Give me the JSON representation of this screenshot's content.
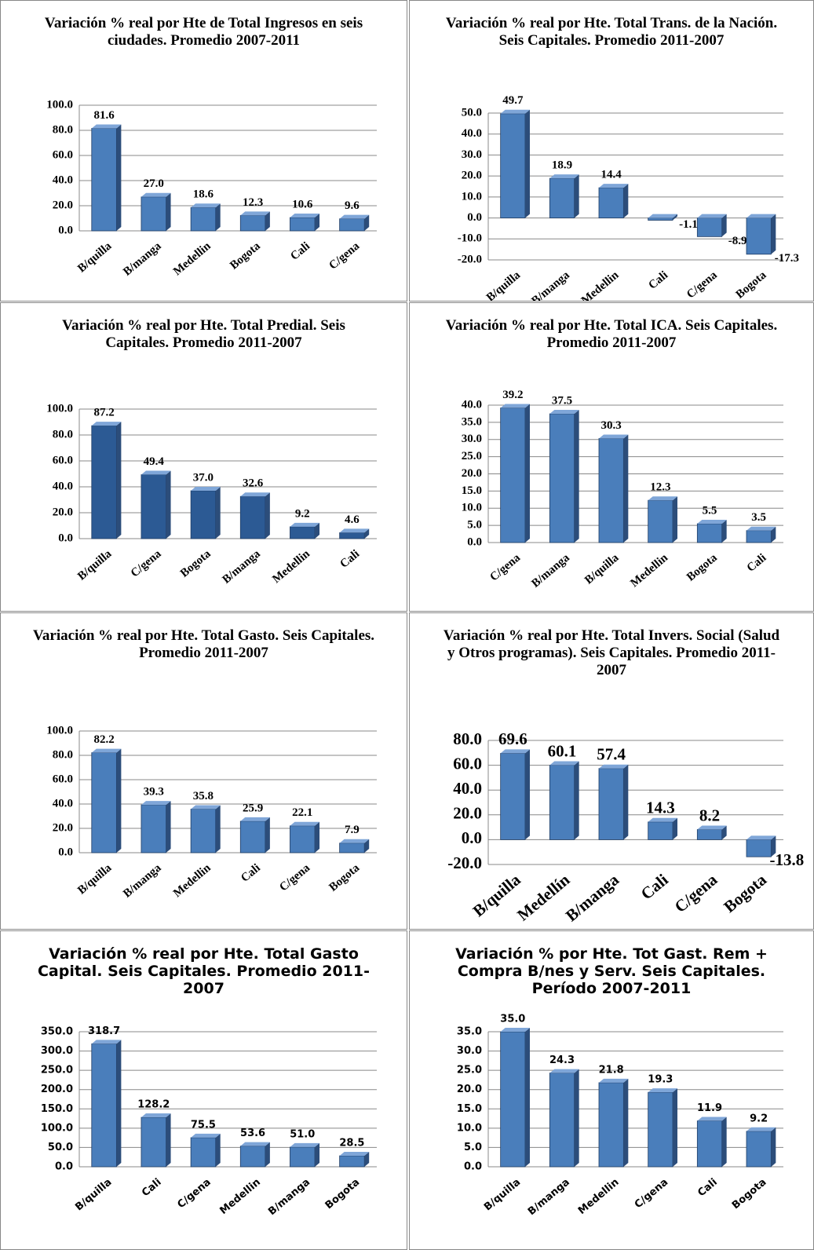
{
  "chart_data": [
    {
      "type": "bar",
      "title": "Variación % real por Hte de Total Ingresos en seis ciudades. Promedio 2007-2011",
      "categories": [
        "B/quilla",
        "B/manga",
        "Medellin",
        "Bogota",
        "Cali",
        "C/gena"
      ],
      "values": [
        81.6,
        27.0,
        18.6,
        12.3,
        10.6,
        9.6
      ],
      "value_labels": [
        "81.6",
        "27.0",
        "18.6",
        "12.3",
        "10.6",
        "9.6"
      ],
      "color": "#4a7ebb",
      "ylim": [
        0,
        100
      ],
      "yticks": [
        {
          "value": 0,
          "label": "0.0"
        },
        {
          "value": 20,
          "label": "20.0"
        },
        {
          "value": 40,
          "label": "40.0"
        },
        {
          "value": 60,
          "label": "60.0"
        },
        {
          "value": 80,
          "label": "80.0"
        },
        {
          "value": 100,
          "label": "100.0"
        }
      ],
      "grid": true
    },
    {
      "type": "bar",
      "title": "Variación %  real por Hte. Total Trans. de la Nación. Seis Capitales. Promedio 2011-2007",
      "categories": [
        "B/quilla",
        "B/manga",
        "Medellin",
        "Cali",
        "C/gena",
        "Bogota"
      ],
      "values": [
        49.7,
        18.9,
        14.4,
        -1.1,
        -8.9,
        -17.3
      ],
      "value_labels": [
        "49.7",
        "18.9",
        "14.4",
        "-1.1",
        "-8.9",
        "-17.3"
      ],
      "color": "#4a7ebb",
      "ylim": [
        -20,
        50
      ],
      "yticks": [
        {
          "value": -20,
          "label": "-20.0"
        },
        {
          "value": -10,
          "label": "-10.0"
        },
        {
          "value": 0,
          "label": "0.0"
        },
        {
          "value": 10,
          "label": "10.0"
        },
        {
          "value": 20,
          "label": "20.0"
        },
        {
          "value": 30,
          "label": "30.0"
        },
        {
          "value": 40,
          "label": "40.0"
        },
        {
          "value": 50,
          "label": "50.0"
        }
      ],
      "grid": true
    },
    {
      "type": "bar",
      "title": "Variación %  real por Hte. Total Predial. Seis Capitales. Promedio 2011-2007",
      "categories": [
        "B/quilla",
        "C/gena",
        "Bogota",
        "B/manga",
        "Medellin",
        "Cali"
      ],
      "values": [
        87.2,
        49.4,
        37.0,
        32.6,
        9.2,
        4.6
      ],
      "value_labels": [
        "87.2",
        "49.4",
        "37.0",
        "32.6",
        "9.2",
        "4.6"
      ],
      "color": "#2c5a94",
      "ylim": [
        0,
        100
      ],
      "yticks": [
        {
          "value": 0,
          "label": "0.0"
        },
        {
          "value": 20,
          "label": "20.0"
        },
        {
          "value": 40,
          "label": "40.0"
        },
        {
          "value": 60,
          "label": "60.0"
        },
        {
          "value": 80,
          "label": "80.0"
        },
        {
          "value": 100,
          "label": "100.0"
        }
      ],
      "grid": true
    },
    {
      "type": "bar",
      "title": "Variación %  real por Hte. Total ICA. Seis Capitales. Promedio 2011-2007",
      "categories": [
        "C/gena",
        "B/manga",
        "B/quilla",
        "Medellin",
        "Bogota",
        "Cali"
      ],
      "values": [
        39.2,
        37.5,
        30.3,
        12.3,
        5.5,
        3.5
      ],
      "value_labels": [
        "39.2",
        "37.5",
        "30.3",
        "12.3",
        "5.5",
        "3.5"
      ],
      "color": "#4a7ebb",
      "ylim": [
        0,
        40
      ],
      "yticks": [
        {
          "value": 0,
          "label": "0.0"
        },
        {
          "value": 5,
          "label": "5.0"
        },
        {
          "value": 10,
          "label": "10.0"
        },
        {
          "value": 15,
          "label": "15.0"
        },
        {
          "value": 20,
          "label": "20.0"
        },
        {
          "value": 25,
          "label": "25.0"
        },
        {
          "value": 30,
          "label": "30.0"
        },
        {
          "value": 35,
          "label": "35.0"
        },
        {
          "value": 40,
          "label": "40.0"
        }
      ],
      "grid": true
    },
    {
      "type": "bar",
      "title": "Variación %  real por Hte. Total Gasto. Seis Capitales. Promedio 2011-2007",
      "categories": [
        "B/quilla",
        "B/manga",
        "Medellin",
        "Cali",
        "C/gena",
        "Bogota"
      ],
      "values": [
        82.2,
        39.3,
        35.8,
        25.9,
        22.1,
        7.9
      ],
      "value_labels": [
        "82.2",
        "39.3",
        "35.8",
        "25.9",
        "22.1",
        "7.9"
      ],
      "color": "#4a7ebb",
      "ylim": [
        0,
        100
      ],
      "yticks": [
        {
          "value": 0,
          "label": "0.0"
        },
        {
          "value": 20,
          "label": "20.0"
        },
        {
          "value": 40,
          "label": "40.0"
        },
        {
          "value": 60,
          "label": "60.0"
        },
        {
          "value": 80,
          "label": "80.0"
        },
        {
          "value": 100,
          "label": "100.0"
        }
      ],
      "grid": true
    },
    {
      "type": "bar",
      "title": "Variación %  real por Hte. Total Invers. Social (Salud y Otros programas). Seis Capitales. Promedio 2011-2007",
      "categories": [
        "B/quilla",
        "Medellín",
        "B/manga",
        "Cali",
        "C/gena",
        "Bogota"
      ],
      "values": [
        69.6,
        60.1,
        57.4,
        14.3,
        8.2,
        -13.8
      ],
      "value_labels": [
        "69.6",
        "60.1",
        "57.4",
        "14.3",
        "8.2",
        "-13.8"
      ],
      "color": "#4a7ebb",
      "ylim": [
        -20,
        80
      ],
      "yticks": [
        {
          "value": -20,
          "label": "-20.0"
        },
        {
          "value": 0,
          "label": "0.0"
        },
        {
          "value": 20,
          "label": "20.0"
        },
        {
          "value": 40,
          "label": "40.0"
        },
        {
          "value": 60,
          "label": "60.0"
        },
        {
          "value": 80,
          "label": "80.0"
        }
      ],
      "grid": true
    },
    {
      "type": "bar",
      "title": "Variación % real por Hte. Total Gasto  Capital. Seis Capitales. Promedio 2011- 2007",
      "categories": [
        "B/quilla",
        "Cali",
        "C/gena",
        "Medellin",
        "B/manga",
        "Bogota"
      ],
      "values": [
        318.7,
        128.2,
        75.5,
        53.6,
        51.0,
        28.5
      ],
      "value_labels": [
        "318.7",
        "128.2",
        "75.5",
        "53.6",
        "51.0",
        "28.5"
      ],
      "color": "#4a7ebb",
      "ylim": [
        0,
        350
      ],
      "yticks": [
        {
          "value": 0,
          "label": "0.0"
        },
        {
          "value": 50,
          "label": "50.0"
        },
        {
          "value": 100,
          "label": "100.0"
        },
        {
          "value": 150,
          "label": "150.0"
        },
        {
          "value": 200,
          "label": "200.0"
        },
        {
          "value": 250,
          "label": "250.0"
        },
        {
          "value": 300,
          "label": "300.0"
        },
        {
          "value": 350,
          "label": "350.0"
        }
      ],
      "grid": true
    },
    {
      "type": "bar",
      "title": "Variación % por Hte. Tot Gast. Rem + Compra B/nes y Serv. Seis Capitales. Período 2007-2011",
      "categories": [
        "B/quilla",
        "B/manga",
        "Medellin",
        "C/gena",
        "Cali",
        "Bogota"
      ],
      "values": [
        35.0,
        24.3,
        21.8,
        19.3,
        11.9,
        9.2
      ],
      "value_labels": [
        "35.0",
        "24.3",
        "21.8",
        "19.3",
        "11.9",
        "9.2"
      ],
      "color": "#4a7ebb",
      "ylim": [
        0,
        35
      ],
      "yticks": [
        {
          "value": 0,
          "label": "0.0"
        },
        {
          "value": 5,
          "label": "5.0"
        },
        {
          "value": 10,
          "label": "10.0"
        },
        {
          "value": 15,
          "label": "15.0"
        },
        {
          "value": 20,
          "label": "20.0"
        },
        {
          "value": 25,
          "label": "25.0"
        },
        {
          "value": 30,
          "label": "30.0"
        },
        {
          "value": 35,
          "label": "35.0"
        }
      ],
      "grid": true
    }
  ]
}
